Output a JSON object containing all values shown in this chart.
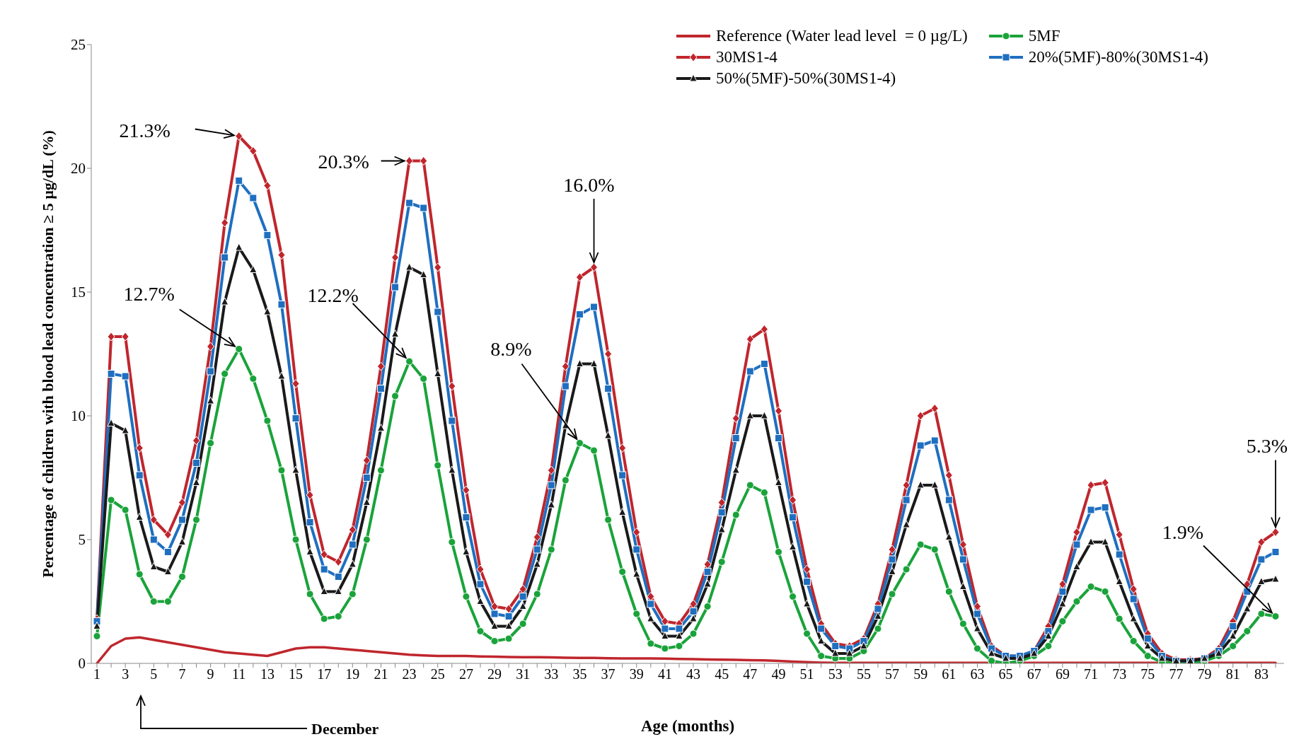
{
  "chart_data": {
    "type": "line",
    "xlabel": "Age (months)",
    "ylabel": "Percentage of children with blood lead concentration ≥ 5 µg/dL (%)",
    "x": [
      1,
      2,
      3,
      4,
      5,
      6,
      7,
      8,
      9,
      10,
      11,
      12,
      13,
      14,
      15,
      16,
      17,
      18,
      19,
      20,
      21,
      22,
      23,
      24,
      25,
      26,
      27,
      28,
      29,
      30,
      31,
      32,
      33,
      34,
      35,
      36,
      37,
      38,
      39,
      40,
      41,
      42,
      43,
      44,
      45,
      46,
      47,
      48,
      49,
      50,
      51,
      52,
      53,
      54,
      55,
      56,
      57,
      58,
      59,
      60,
      61,
      62,
      63,
      64,
      65,
      66,
      67,
      68,
      69,
      70,
      71,
      72,
      73,
      74,
      75,
      76,
      77,
      78,
      79,
      80,
      81,
      82,
      83,
      84
    ],
    "xlim": [
      0.6,
      84.6
    ],
    "xticks": [
      1,
      {
        "value": 2,
        "label": null
      },
      3,
      {
        "value": 4,
        "label": null
      },
      5,
      {
        "value": 6,
        "label": null
      },
      7,
      {
        "value": 8,
        "label": null
      },
      9,
      {
        "value": 10,
        "label": null
      },
      11,
      {
        "value": 12,
        "label": null
      },
      13,
      {
        "value": 14,
        "label": null
      },
      15,
      {
        "value": 16,
        "label": null
      },
      17,
      {
        "value": 18,
        "label": null
      },
      19,
      {
        "value": 20,
        "label": null
      },
      21,
      {
        "value": 22,
        "label": null
      },
      23,
      {
        "value": 24,
        "label": null
      },
      25,
      {
        "value": 26,
        "label": null
      },
      27,
      {
        "value": 28,
        "label": null
      },
      29,
      {
        "value": 30,
        "label": null
      },
      31,
      {
        "value": 32,
        "label": null
      },
      33,
      {
        "value": 34,
        "label": null
      },
      35,
      {
        "value": 36,
        "label": null
      },
      37,
      {
        "value": 38,
        "label": null
      },
      39,
      {
        "value": 40,
        "label": null
      },
      41,
      {
        "value": 42,
        "label": null
      },
      43,
      {
        "value": 44,
        "label": null
      },
      45,
      {
        "value": 46,
        "label": null
      },
      47,
      {
        "value": 48,
        "label": null
      },
      49,
      {
        "value": 50,
        "label": null
      },
      51,
      {
        "value": 52,
        "label": null
      },
      53,
      {
        "value": 54,
        "label": null
      },
      55,
      {
        "value": 56,
        "label": null
      },
      57,
      {
        "value": 58,
        "label": null
      },
      59,
      {
        "value": 60,
        "label": null
      },
      61,
      {
        "value": 62,
        "label": null
      },
      63,
      {
        "value": 64,
        "label": null
      },
      65,
      {
        "value": 66,
        "label": null
      },
      67,
      {
        "value": 68,
        "label": null
      },
      69,
      {
        "value": 70,
        "label": null
      },
      71,
      {
        "value": 72,
        "label": null
      },
      73,
      {
        "value": 74,
        "label": null
      },
      75,
      {
        "value": 76,
        "label": null
      },
      77,
      {
        "value": 78,
        "label": null
      },
      79,
      {
        "value": 80,
        "label": null
      },
      81,
      {
        "value": 82,
        "label": null
      },
      83,
      {
        "value": 84,
        "label": null
      }
    ],
    "ylim": [
      0,
      25
    ],
    "yticks": [
      0,
      5,
      10,
      15,
      20,
      25
    ],
    "grid": false,
    "legend": "top right",
    "line_style": "solid",
    "series": [
      {
        "name": "Reference (Water lead level  = 0 µg/L)",
        "color": "#c0262d",
        "marker": "none",
        "values": [
          0,
          0.7,
          1.0,
          1.05,
          0.95,
          0.85,
          0.75,
          0.65,
          0.55,
          0.45,
          0.4,
          0.35,
          0.3,
          0.45,
          0.6,
          0.65,
          0.65,
          0.6,
          0.55,
          0.5,
          0.45,
          0.4,
          0.35,
          0.32,
          0.3,
          0.3,
          0.3,
          0.28,
          0.27,
          0.26,
          0.25,
          0.25,
          0.24,
          0.23,
          0.22,
          0.22,
          0.21,
          0.2,
          0.2,
          0.2,
          0.19,
          0.18,
          0.17,
          0.16,
          0.15,
          0.14,
          0.13,
          0.12,
          0.1,
          0.07,
          0.05,
          0.03,
          0.02,
          0.02,
          0.02,
          0.02,
          0.02,
          0.02,
          0.02,
          0.02,
          0.02,
          0.02,
          0.02,
          0.02,
          0.02,
          0.02,
          0.02,
          0.02,
          0.02,
          0.02,
          0.02,
          0.02,
          0.02,
          0.02,
          0.02,
          0.02,
          0.02,
          0.02,
          0.02,
          0.02,
          0.02,
          0.02,
          0.02,
          0.02
        ]
      },
      {
        "name": "5MF",
        "color": "#1aa33a",
        "marker": "circle",
        "values": [
          1.1,
          6.6,
          6.2,
          3.6,
          2.5,
          2.5,
          3.5,
          5.8,
          8.9,
          11.7,
          12.7,
          11.5,
          9.8,
          7.8,
          5.0,
          2.8,
          1.8,
          1.9,
          2.8,
          5.0,
          7.8,
          10.8,
          12.2,
          11.5,
          8.0,
          4.9,
          2.7,
          1.3,
          0.9,
          1.0,
          1.6,
          2.8,
          4.6,
          7.4,
          8.9,
          8.6,
          5.8,
          3.7,
          2.0,
          0.8,
          0.6,
          0.7,
          1.2,
          2.3,
          4.1,
          6.0,
          7.2,
          6.9,
          4.5,
          2.7,
          1.2,
          0.3,
          0.2,
          0.2,
          0.5,
          1.4,
          2.8,
          3.8,
          4.8,
          4.6,
          2.9,
          1.6,
          0.6,
          0.1,
          0.0,
          0.1,
          0.3,
          0.7,
          1.7,
          2.5,
          3.1,
          2.9,
          1.8,
          0.9,
          0.3,
          0.05,
          0.0,
          0.0,
          0.1,
          0.3,
          0.7,
          1.3,
          2.0,
          1.9
        ]
      },
      {
        "name": "30MS1-4",
        "color": "#c0262d",
        "marker": "diamond",
        "values": [
          1.8,
          13.2,
          13.2,
          8.7,
          5.8,
          5.2,
          6.5,
          9.0,
          12.8,
          17.8,
          21.3,
          20.7,
          19.3,
          16.5,
          11.3,
          6.8,
          4.4,
          4.1,
          5.4,
          8.2,
          12.0,
          16.4,
          20.3,
          20.3,
          16.0,
          11.2,
          7.0,
          3.8,
          2.3,
          2.2,
          3.0,
          5.1,
          7.8,
          12.0,
          15.6,
          16.0,
          12.5,
          8.7,
          5.3,
          2.7,
          1.7,
          1.6,
          2.4,
          4.0,
          6.5,
          9.9,
          13.1,
          13.5,
          10.2,
          6.6,
          3.8,
          1.6,
          0.8,
          0.7,
          1.0,
          2.4,
          4.6,
          7.2,
          10.0,
          10.3,
          7.6,
          4.8,
          2.3,
          0.7,
          0.3,
          0.3,
          0.5,
          1.5,
          3.2,
          5.3,
          7.2,
          7.3,
          5.2,
          3.0,
          1.2,
          0.4,
          0.15,
          0.15,
          0.2,
          0.6,
          1.7,
          3.2,
          4.9,
          5.3
        ]
      },
      {
        "name": "20%(5MF)-80%(30MS1-4)",
        "color": "#1f6fc0",
        "marker": "square",
        "values": [
          1.7,
          11.7,
          11.6,
          7.6,
          5.0,
          4.5,
          5.8,
          8.1,
          11.8,
          16.4,
          19.5,
          18.8,
          17.3,
          14.5,
          9.9,
          5.7,
          3.8,
          3.5,
          4.8,
          7.5,
          11.1,
          15.2,
          18.6,
          18.4,
          14.2,
          9.8,
          5.9,
          3.2,
          2.0,
          1.9,
          2.7,
          4.6,
          7.2,
          11.2,
          14.1,
          14.4,
          11.1,
          7.6,
          4.6,
          2.4,
          1.4,
          1.4,
          2.1,
          3.7,
          6.1,
          9.1,
          11.8,
          12.1,
          9.1,
          5.9,
          3.3,
          1.4,
          0.7,
          0.6,
          0.9,
          2.2,
          4.2,
          6.6,
          8.8,
          9.0,
          6.6,
          4.2,
          2.0,
          0.6,
          0.3,
          0.3,
          0.5,
          1.3,
          2.9,
          4.8,
          6.2,
          6.3,
          4.4,
          2.6,
          1.0,
          0.3,
          0.1,
          0.1,
          0.2,
          0.5,
          1.5,
          2.9,
          4.2,
          4.5
        ]
      },
      {
        "name": "50%(5MF)-50%(30MS1-4)",
        "color": "#1a1a1a",
        "marker": "triangle",
        "values": [
          1.5,
          9.7,
          9.4,
          5.9,
          3.9,
          3.7,
          4.9,
          7.3,
          10.6,
          14.6,
          16.8,
          15.9,
          14.2,
          11.6,
          7.8,
          4.5,
          2.9,
          2.9,
          4.0,
          6.5,
          9.5,
          13.3,
          16.0,
          15.7,
          11.7,
          7.8,
          4.5,
          2.5,
          1.5,
          1.5,
          2.3,
          4.0,
          6.4,
          9.6,
          12.1,
          12.1,
          9.2,
          6.1,
          3.6,
          1.8,
          1.1,
          1.1,
          1.8,
          3.2,
          5.4,
          7.8,
          10.0,
          10.0,
          7.3,
          4.7,
          2.4,
          0.9,
          0.4,
          0.4,
          0.7,
          1.9,
          3.7,
          5.6,
          7.2,
          7.2,
          5.1,
          3.1,
          1.4,
          0.4,
          0.2,
          0.2,
          0.4,
          1.1,
          2.4,
          3.9,
          4.9,
          4.9,
          3.3,
          1.8,
          0.7,
          0.2,
          0.1,
          0.1,
          0.2,
          0.4,
          1.1,
          2.2,
          3.3,
          3.4
        ]
      }
    ],
    "annotations": [
      {
        "text": "21.3%",
        "x": 11,
        "y": 21.3
      },
      {
        "text": "12.7%",
        "x": 11,
        "y": 12.7
      },
      {
        "text": "20.3%",
        "x": 23,
        "y": 20.3
      },
      {
        "text": "12.2%",
        "x": 23,
        "y": 12.2
      },
      {
        "text": "16.0%",
        "x": 36,
        "y": 16.0
      },
      {
        "text": "8.9%",
        "x": 35,
        "y": 8.9
      },
      {
        "text": "5.3%",
        "x": 84,
        "y": 5.3
      },
      {
        "text": "1.9%",
        "x": 84,
        "y": 1.9
      },
      "December"
    ]
  }
}
